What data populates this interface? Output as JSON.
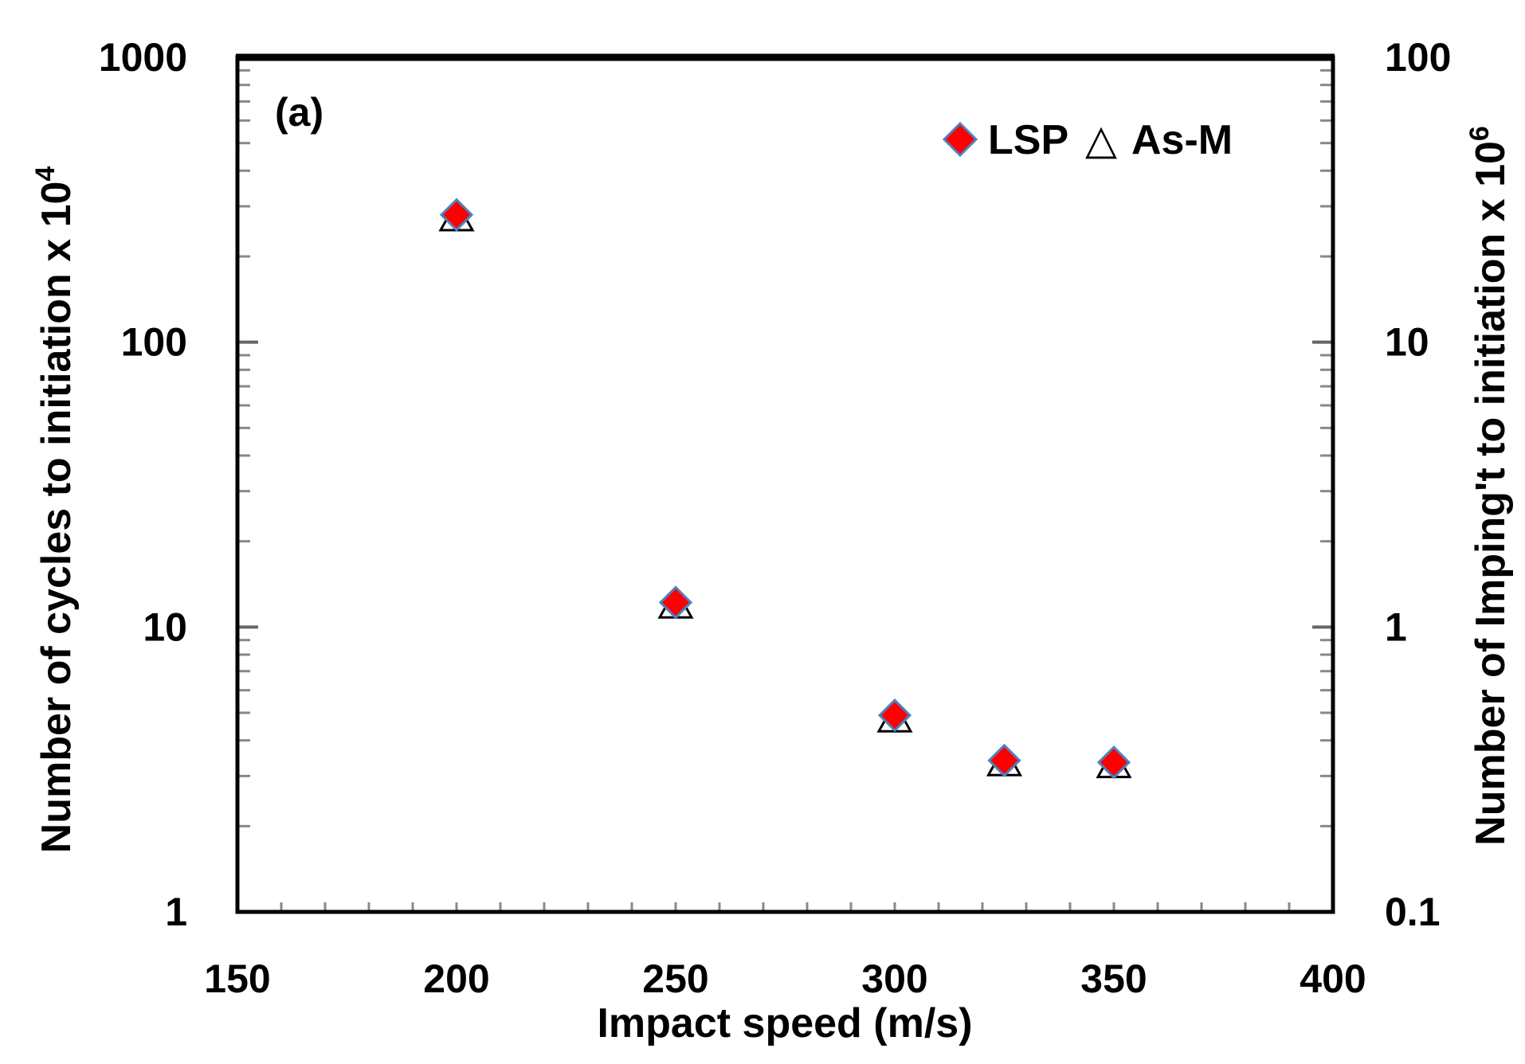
{
  "chart_data": {
    "type": "scatter",
    "panel_label": "(a)",
    "x": [
      200,
      250,
      300,
      325,
      350
    ],
    "series": [
      {
        "name": "LSP",
        "marker": "diamond",
        "color": "#ff0000",
        "edge_color": "#4f81bd",
        "values": [
          280,
          12.2,
          4.9,
          3.4,
          3.35
        ]
      },
      {
        "name": "As-M",
        "marker": "triangle-open",
        "color": "#000000",
        "values": [
          270,
          11.8,
          4.7,
          3.3,
          3.25
        ]
      }
    ],
    "xlabel": "Impact speed (m/s)",
    "ylabel": {
      "text": "Number of cycles to initiation x 10",
      "sup": "4"
    },
    "y2label": {
      "text": "Number of Imping't to initiation x 10",
      "sup": "6"
    },
    "xlim": [
      150,
      400
    ],
    "xticks": [
      "150",
      "200",
      "250",
      "300",
      "350",
      "400"
    ],
    "ylim": [
      1,
      1000
    ],
    "yscale": "log",
    "yticks": [
      "1",
      "10",
      "100",
      "1000"
    ],
    "y2lim": [
      0.1,
      100
    ],
    "y2ticks": [
      "0.1",
      "1",
      "10",
      "100"
    ],
    "legend": {
      "placement": "top-right",
      "entries": [
        "LSP",
        "As-M"
      ],
      "triangle_glyph": "△"
    },
    "grid": false
  }
}
